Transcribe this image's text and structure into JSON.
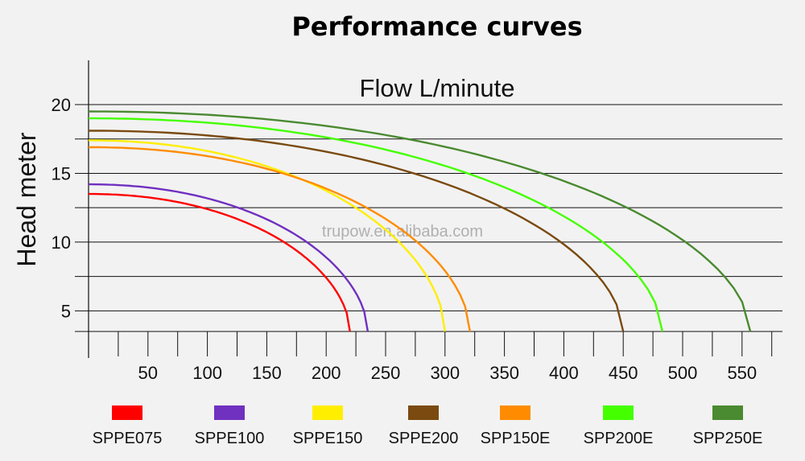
{
  "chart_data": {
    "type": "line",
    "title": "Performance curves",
    "subtitle": "Flow L/minute",
    "ylabel": "Head meter",
    "xlabel": "",
    "watermark": "trupow.en.alibaba.com",
    "xlim": [
      0,
      580
    ],
    "ylim": [
      3.5,
      23
    ],
    "x_ticks": [
      50,
      100,
      150,
      200,
      250,
      300,
      350,
      400,
      450,
      500,
      550
    ],
    "y_ticks": [
      5,
      10,
      15,
      20
    ],
    "gridlines_y": [
      3.5,
      5,
      7.5,
      10,
      12.5,
      15,
      17.5,
      20
    ],
    "minor_x_step": 25,
    "legend_position": "bottom",
    "series": [
      {
        "name": "SPPE075",
        "color": "#ff0000",
        "x": [
          0,
          220
        ],
        "y": [
          13.5,
          3.5
        ]
      },
      {
        "name": "SPPE100",
        "color": "#7030c0",
        "x": [
          0,
          235
        ],
        "y": [
          14.2,
          3.5
        ]
      },
      {
        "name": "SPPE150",
        "color": "#ffee00",
        "x": [
          0,
          300
        ],
        "y": [
          17.4,
          3.5
        ]
      },
      {
        "name": "SPPE200",
        "color": "#7a4a10",
        "x": [
          0,
          450
        ],
        "y": [
          18.1,
          3.5
        ]
      },
      {
        "name": "SPP150E",
        "color": "#ff8c00",
        "x": [
          0,
          321
        ],
        "y": [
          16.9,
          3.5
        ]
      },
      {
        "name": "SPP200E",
        "color": "#44ff00",
        "x": [
          0,
          483
        ],
        "y": [
          19.0,
          3.5
        ]
      },
      {
        "name": "SPP250E",
        "color": "#4a8a30",
        "x": [
          0,
          557
        ],
        "y": [
          19.5,
          3.5
        ]
      }
    ]
  }
}
